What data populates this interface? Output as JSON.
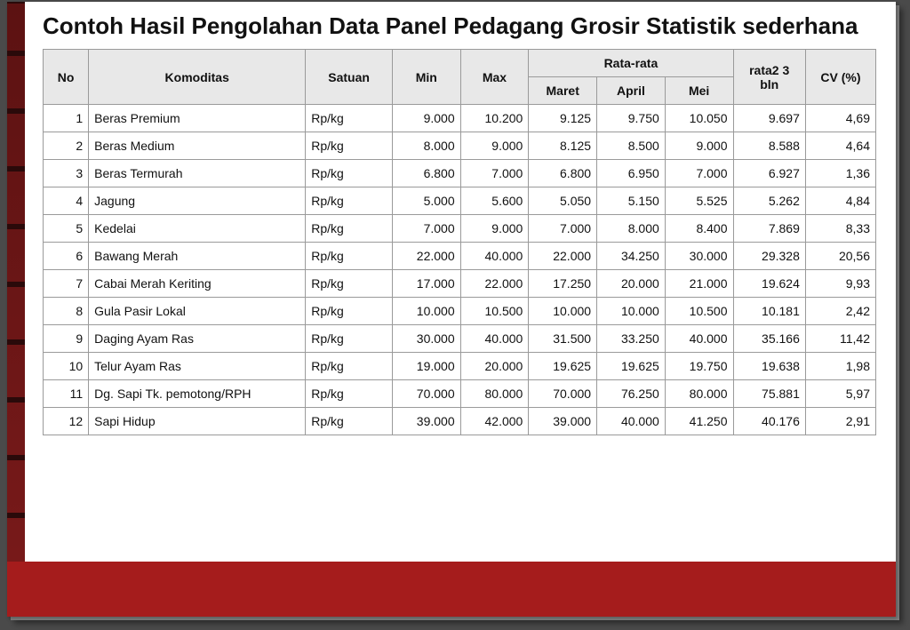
{
  "title": "Contoh Hasil Pengolahan Data Panel Pedagang Grosir Statistik sederhana",
  "table": {
    "type": "table",
    "header_bg": "#e8e8e8",
    "border_color": "#9a9a9a",
    "columns": {
      "no": "No",
      "komoditas": "Komoditas",
      "satuan": "Satuan",
      "min": "Min",
      "max": "Max",
      "rata_group": "Rata-rata",
      "maret": "Maret",
      "april": "April",
      "mei": "Mei",
      "rata2_3bln": "rata2 3 bln",
      "cv": "CV (%)"
    },
    "rows": [
      {
        "no": "1",
        "komoditas": "Beras Premium",
        "satuan": "Rp/kg",
        "min": "9.000",
        "max": "10.200",
        "maret": "9.125",
        "april": "9.750",
        "mei": "10.050",
        "r3": "9.697",
        "cv": "4,69"
      },
      {
        "no": "2",
        "komoditas": "Beras Medium",
        "satuan": "Rp/kg",
        "min": "8.000",
        "max": "9.000",
        "maret": "8.125",
        "april": "8.500",
        "mei": "9.000",
        "r3": "8.588",
        "cv": "4,64"
      },
      {
        "no": "3",
        "komoditas": "Beras Termurah",
        "satuan": "Rp/kg",
        "min": "6.800",
        "max": "7.000",
        "maret": "6.800",
        "april": "6.950",
        "mei": "7.000",
        "r3": "6.927",
        "cv": "1,36"
      },
      {
        "no": "4",
        "komoditas": "Jagung",
        "satuan": "Rp/kg",
        "min": "5.000",
        "max": "5.600",
        "maret": "5.050",
        "april": "5.150",
        "mei": "5.525",
        "r3": "5.262",
        "cv": "4,84"
      },
      {
        "no": "5",
        "komoditas": "Kedelai",
        "satuan": "Rp/kg",
        "min": "7.000",
        "max": "9.000",
        "maret": "7.000",
        "april": "8.000",
        "mei": "8.400",
        "r3": "7.869",
        "cv": "8,33"
      },
      {
        "no": "6",
        "komoditas": "Bawang Merah",
        "satuan": "Rp/kg",
        "min": "22.000",
        "max": "40.000",
        "maret": "22.000",
        "april": "34.250",
        "mei": "30.000",
        "r3": "29.328",
        "cv": "20,56"
      },
      {
        "no": "7",
        "komoditas": "Cabai Merah Keriting",
        "satuan": "Rp/kg",
        "min": "17.000",
        "max": "22.000",
        "maret": "17.250",
        "april": "20.000",
        "mei": "21.000",
        "r3": "19.624",
        "cv": "9,93"
      },
      {
        "no": "8",
        "komoditas": "Gula Pasir Lokal",
        "satuan": "Rp/kg",
        "min": "10.000",
        "max": "10.500",
        "maret": "10.000",
        "april": "10.000",
        "mei": "10.500",
        "r3": "10.181",
        "cv": "2,42"
      },
      {
        "no": "9",
        "komoditas": "Daging Ayam Ras",
        "satuan": "Rp/kg",
        "min": "30.000",
        "max": "40.000",
        "maret": "31.500",
        "april": "33.250",
        "mei": "40.000",
        "r3": "35.166",
        "cv": "11,42"
      },
      {
        "no": "10",
        "komoditas": "Telur Ayam Ras",
        "satuan": "Rp/kg",
        "min": "19.000",
        "max": "20.000",
        "maret": "19.625",
        "april": "19.625",
        "mei": "19.750",
        "r3": "19.638",
        "cv": "1,98"
      },
      {
        "no": "11",
        "komoditas": "Dg. Sapi Tk. pemotong/RPH",
        "satuan": "Rp/kg",
        "min": "70.000",
        "max": "80.000",
        "maret": "70.000",
        "april": "76.250",
        "mei": "80.000",
        "r3": "75.881",
        "cv": "5,97"
      },
      {
        "no": "12",
        "komoditas": "Sapi Hidup",
        "satuan": "Rp/kg",
        "min": "39.000",
        "max": "42.000",
        "maret": "39.000",
        "april": "40.000",
        "mei": "41.250",
        "r3": "40.176",
        "cv": "2,91"
      }
    ]
  },
  "colors": {
    "accent_red": "#a51c1c",
    "brick_dark": "#5c1212",
    "page_bg": "#ffffff"
  }
}
